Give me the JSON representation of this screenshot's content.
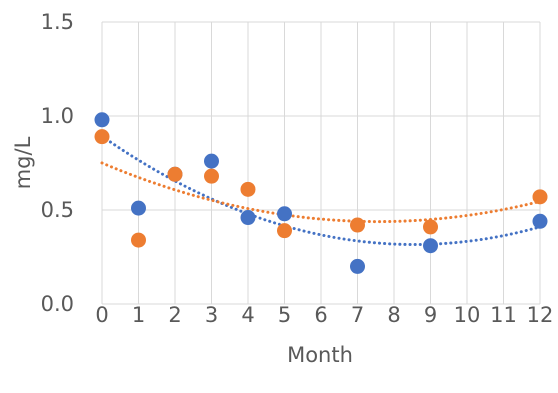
{
  "chart_data": {
    "type": "scatter",
    "title": "",
    "xlabel": "Month",
    "ylabel": "mg/L",
    "xlim": [
      0,
      12
    ],
    "ylim": [
      0,
      1.5
    ],
    "x_ticks": [
      "0",
      "1",
      "2",
      "3",
      "4",
      "5",
      "6",
      "7",
      "8",
      "9",
      "10",
      "11",
      "12"
    ],
    "y_ticks": [
      "0.0",
      "0.5",
      "1.0",
      "1.5"
    ],
    "grid": true,
    "legend": "none",
    "series": [
      {
        "color": "#4472C4",
        "points": [
          {
            "x": 0,
            "y": 0.98
          },
          {
            "x": 1,
            "y": 0.51
          },
          {
            "x": 2,
            "y": 0.69
          },
          {
            "x": 3,
            "y": 0.76
          },
          {
            "x": 4,
            "y": 0.46
          },
          {
            "x": 5,
            "y": 0.48
          },
          {
            "x": 7,
            "y": 0.2
          },
          {
            "x": 9,
            "y": 0.31
          },
          {
            "x": 12,
            "y": 0.44
          }
        ],
        "trendline": {
          "type": "polynomial",
          "order": 2,
          "style": "dotted"
        }
      },
      {
        "color": "#ED7D31",
        "points": [
          {
            "x": 0,
            "y": 0.89
          },
          {
            "x": 1,
            "y": 0.34
          },
          {
            "x": 2,
            "y": 0.69
          },
          {
            "x": 3,
            "y": 0.68
          },
          {
            "x": 4,
            "y": 0.61
          },
          {
            "x": 5,
            "y": 0.39
          },
          {
            "x": 7,
            "y": 0.42
          },
          {
            "x": 9,
            "y": 0.41
          },
          {
            "x": 12,
            "y": 0.57
          }
        ],
        "trendline": {
          "type": "polynomial",
          "order": 2,
          "style": "dotted"
        }
      }
    ]
  }
}
